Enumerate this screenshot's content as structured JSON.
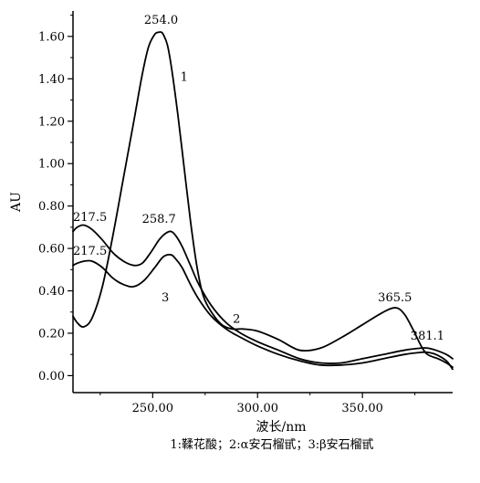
{
  "chart_data": {
    "type": "line",
    "xlabel": "波长/nm",
    "ylabel": "AU",
    "xlim": [
      212,
      393
    ],
    "ylim": [
      -0.08,
      1.72
    ],
    "x_ticks": [
      250,
      300,
      350
    ],
    "x_tick_labels": [
      "250.00",
      "300.00",
      "350.00"
    ],
    "y_ticks": [
      0,
      0.2,
      0.4,
      0.6,
      0.8,
      1.0,
      1.2,
      1.4,
      1.6
    ],
    "y_tick_labels": [
      "0.00",
      "0.20",
      "0.40",
      "0.60",
      "0.80",
      "1.00",
      "1.20",
      "1.40",
      "1.60"
    ],
    "grid": false,
    "caption": "1:鞣花酸；2:α安石榴甙；3:β安石榴甙",
    "series": [
      {
        "x": [
          212,
          214,
          217,
          221,
          226,
          231,
          236,
          241,
          245,
          248,
          251,
          253,
          254,
          255,
          257,
          259,
          262,
          265,
          268,
          271,
          274,
          278,
          283,
          288,
          293,
          300,
          310,
          320,
          330,
          340,
          350,
          360,
          366,
          370,
          374,
          378,
          381,
          386,
          390,
          393
        ],
        "y": [
          0.28,
          0.25,
          0.23,
          0.27,
          0.42,
          0.66,
          0.93,
          1.2,
          1.42,
          1.55,
          1.61,
          1.62,
          1.62,
          1.61,
          1.56,
          1.45,
          1.23,
          0.98,
          0.73,
          0.52,
          0.38,
          0.3,
          0.24,
          0.22,
          0.22,
          0.21,
          0.17,
          0.12,
          0.13,
          0.18,
          0.24,
          0.3,
          0.32,
          0.29,
          0.22,
          0.14,
          0.1,
          0.08,
          0.06,
          0.04
        ]
      },
      {
        "x": [
          212,
          214,
          217,
          221,
          226,
          231,
          236,
          241,
          245,
          249,
          253,
          256,
          258.7,
          261,
          264,
          268,
          272,
          278,
          285,
          292,
          300,
          310,
          320,
          330,
          340,
          350,
          360,
          370,
          378,
          381.1,
          385,
          390,
          393
        ],
        "y": [
          0.68,
          0.7,
          0.71,
          0.69,
          0.64,
          0.58,
          0.54,
          0.52,
          0.53,
          0.58,
          0.64,
          0.67,
          0.68,
          0.66,
          0.61,
          0.52,
          0.43,
          0.33,
          0.25,
          0.2,
          0.16,
          0.12,
          0.08,
          0.06,
          0.06,
          0.08,
          0.1,
          0.12,
          0.13,
          0.13,
          0.12,
          0.1,
          0.08
        ]
      },
      {
        "x": [
          212,
          214,
          217.5,
          221,
          226,
          231,
          236,
          241,
          246,
          251,
          255,
          258.7,
          261,
          264,
          268,
          272,
          278,
          285,
          292,
          300,
          310,
          320,
          330,
          340,
          350,
          360,
          370,
          378,
          381,
          385,
          390,
          393
        ],
        "y": [
          0.52,
          0.53,
          0.54,
          0.54,
          0.51,
          0.46,
          0.43,
          0.42,
          0.45,
          0.51,
          0.56,
          0.57,
          0.55,
          0.51,
          0.43,
          0.36,
          0.28,
          0.22,
          0.18,
          0.14,
          0.1,
          0.07,
          0.05,
          0.05,
          0.06,
          0.08,
          0.1,
          0.11,
          0.11,
          0.1,
          0.07,
          0.03
        ]
      }
    ],
    "annotations": [
      {
        "text": "254.0",
        "x": 254,
        "y": 1.66
      },
      {
        "text": "1",
        "x": 265,
        "y": 1.39
      },
      {
        "text": "217.5",
        "x": 212,
        "y": 0.73
      },
      {
        "text": "258.7",
        "x": 253,
        "y": 0.72
      },
      {
        "text": "217.5",
        "x": 212,
        "y": 0.57
      },
      {
        "text": "3",
        "x": 256,
        "y": 0.35
      },
      {
        "text": "2",
        "x": 290,
        "y": 0.25
      },
      {
        "text": "365.5",
        "x": 365.5,
        "y": 0.35
      },
      {
        "text": "381.1",
        "x": 381,
        "y": 0.17
      }
    ]
  }
}
